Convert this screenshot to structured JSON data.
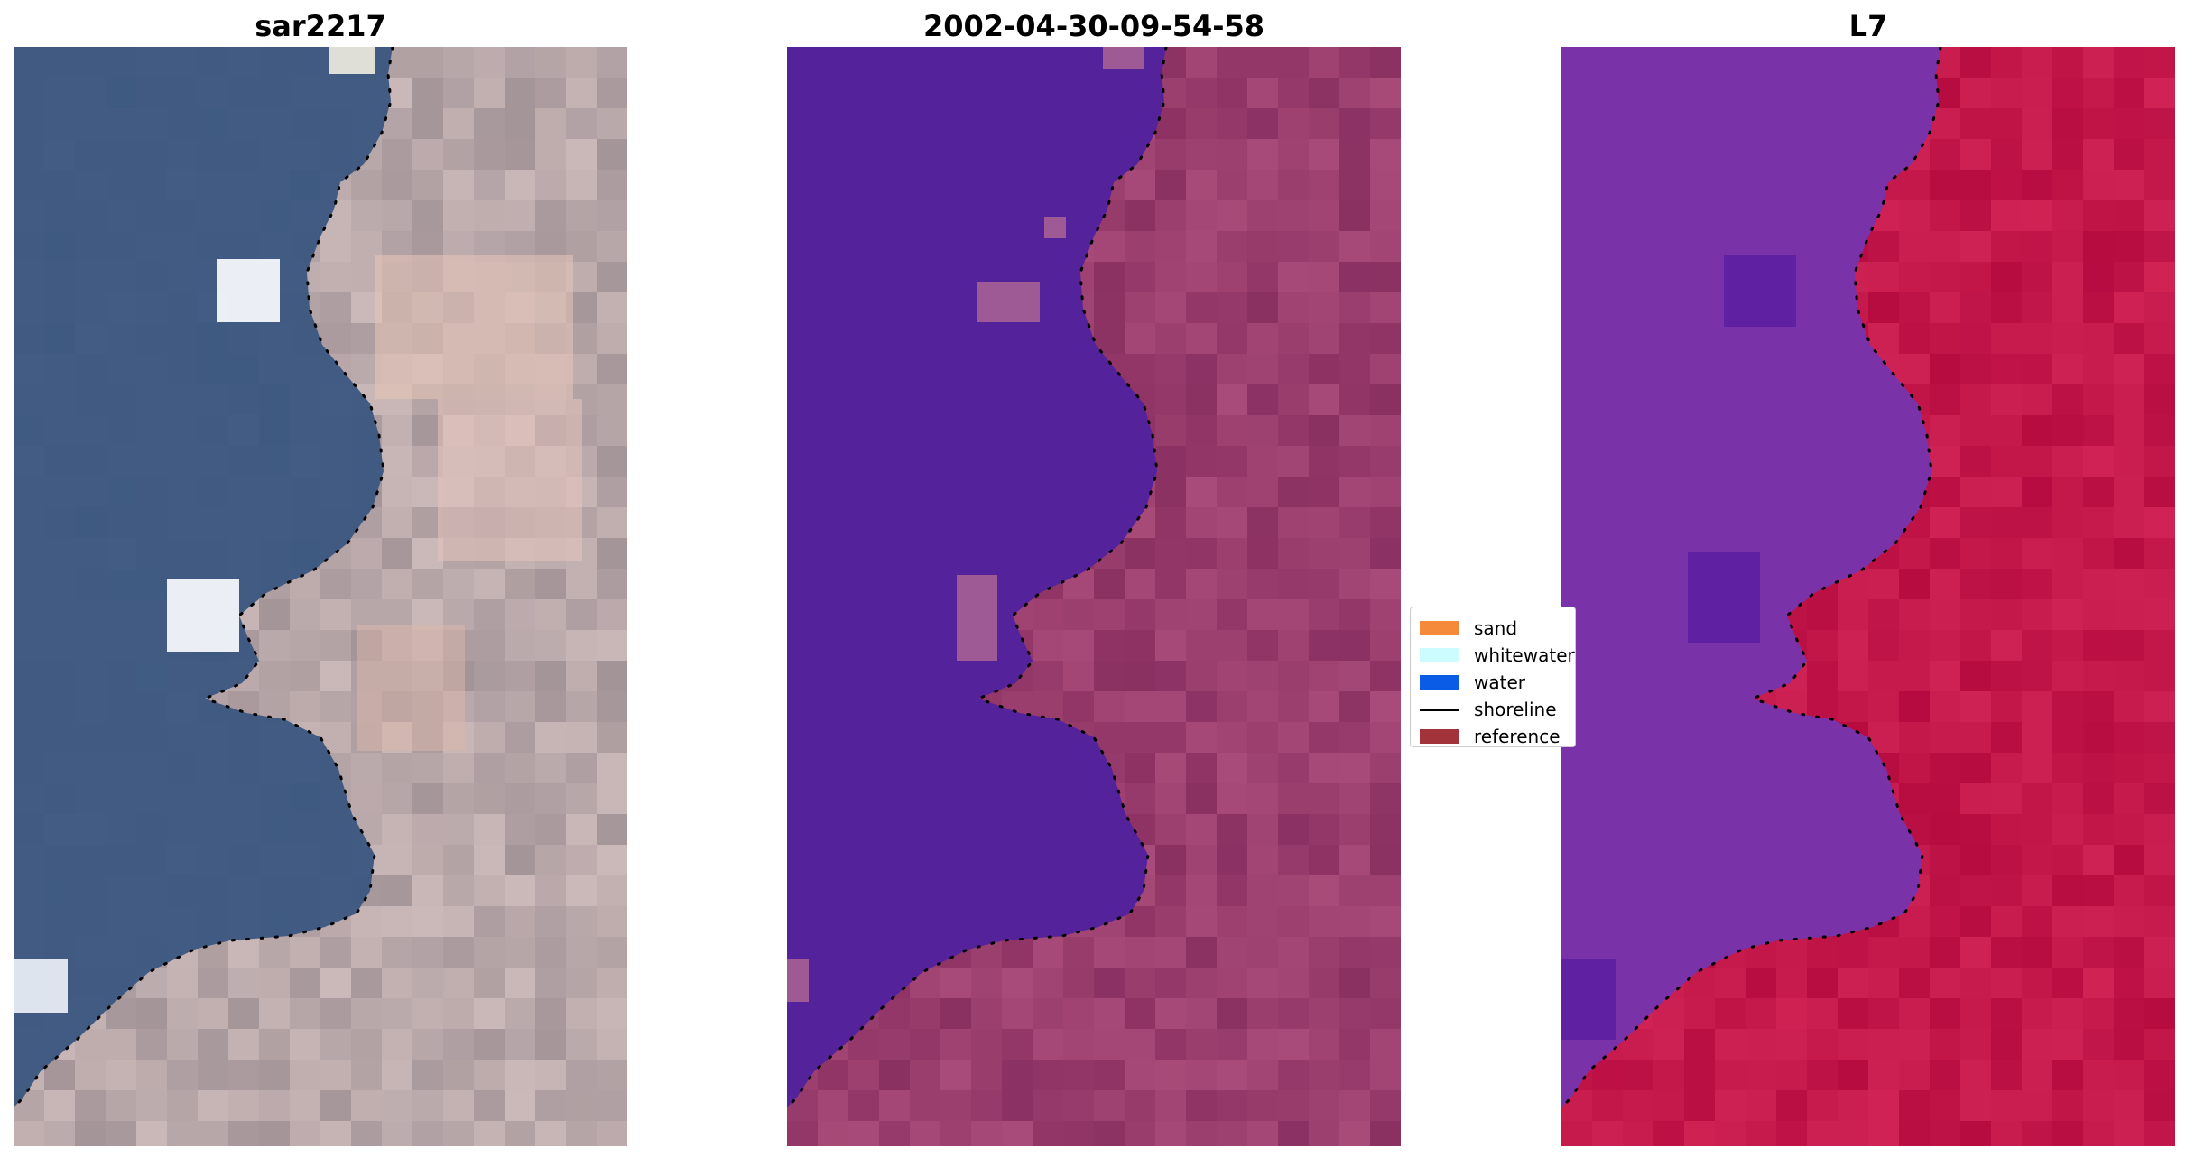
{
  "panels": [
    {
      "title": "sar2217"
    },
    {
      "title": "2002-04-30-09-54-58"
    },
    {
      "title": "L7"
    }
  ],
  "legend": {
    "items": [
      {
        "label": "sand",
        "color": "#f58b3a",
        "kind": "patch"
      },
      {
        "label": "whitewater",
        "color": "#ccfcff",
        "kind": "patch"
      },
      {
        "label": "water",
        "color": "#0a5ce6",
        "kind": "patch"
      },
      {
        "label": "shoreline",
        "color": "#000000",
        "kind": "line"
      },
      {
        "label": "reference",
        "color": "#a3333a",
        "kind": "patch"
      }
    ]
  },
  "colors": {
    "rgb_water": "#3a5680",
    "rgb_land": "#b7a6a8",
    "class_water": "#54239b",
    "class_land": "#9a3e6e",
    "mndwi_water": "#7a32a8",
    "mndwi_land": "#c3174a",
    "shoreline": "#000000"
  }
}
